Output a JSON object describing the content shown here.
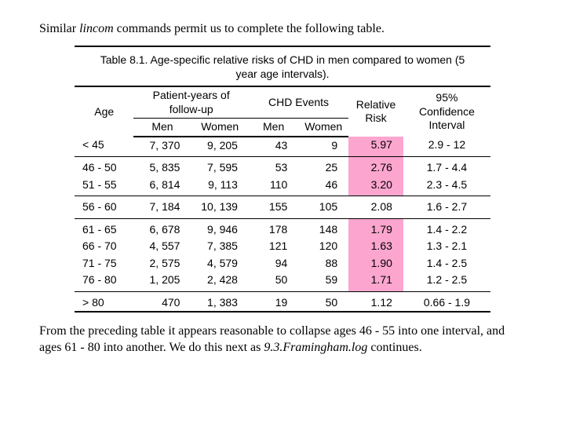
{
  "intro": {
    "prefix": "Similar ",
    "italic": "lincom",
    "suffix": " commands permit us to complete the following table."
  },
  "caption": "Table 8.1.  Age-specific relative risks of CHD in men compared to women (5 year age intervals).",
  "headers": {
    "age": "Age",
    "py": "Patient-years of follow-up",
    "ev": "CHD Events",
    "rr": "Relative Risk",
    "ci": "95% Confidence Interval",
    "men": "Men",
    "women": "Women"
  },
  "rows": [
    {
      "age": "< 45",
      "pym": "7, 370",
      "pyw": "9, 205",
      "evm": "43",
      "evw": "9",
      "rr": "5.97",
      "ci": "2.9 - 12",
      "hl": true,
      "sep": true
    },
    {
      "age": "46 - 50",
      "pym": "5, 835",
      "pyw": "7, 595",
      "evm": "53",
      "evw": "25",
      "rr": "2.76",
      "ci": "1.7 - 4.4",
      "hl": true,
      "new": true
    },
    {
      "age": "51 - 55",
      "pym": "6, 814",
      "pyw": "9, 113",
      "evm": "110",
      "evw": "46",
      "rr": "3.20",
      "ci": "2.3 - 4.5",
      "hl": true,
      "sep": true
    },
    {
      "age": "56 - 60",
      "pym": "7, 184",
      "pyw": "10, 139",
      "evm": "155",
      "evw": "105",
      "rr": "2.08",
      "ci": "1.6 - 2.7",
      "hl": false,
      "sep": true,
      "new": true
    },
    {
      "age": "61 - 65",
      "pym": "6, 678",
      "pyw": "9, 946",
      "evm": "178",
      "evw": "148",
      "rr": "1.79",
      "ci": "1.4 - 2.2",
      "hl": true,
      "new": true
    },
    {
      "age": "66 - 70",
      "pym": "4, 557",
      "pyw": "7, 385",
      "evm": "121",
      "evw": "120",
      "rr": "1.63",
      "ci": "1.3 - 2.1",
      "hl": true
    },
    {
      "age": "71 - 75",
      "pym": "2, 575",
      "pyw": "4, 579",
      "evm": "94",
      "evw": "88",
      "rr": "1.90",
      "ci": "1.4 - 2.5",
      "hl": true
    },
    {
      "age": "76 - 80",
      "pym": "1, 205",
      "pyw": "2, 428",
      "evm": "50",
      "evw": "59",
      "rr": "1.71",
      "ci": "1.2 - 2.5",
      "hl": true,
      "sep": true
    },
    {
      "age": "> 80",
      "pym": "470",
      "pyw": "1, 383",
      "evm": "19",
      "evw": "50",
      "rr": "1.12",
      "ci": "0.66 - 1.9",
      "hl": false,
      "new": true,
      "last": true
    }
  ],
  "outro": {
    "line1": "From the preceding table it appears reasonable to collapse ages 46 - 55 into one interval, and ages 61 - 80 into another.  We do this next as ",
    "italic": "9.3.Framingham.log",
    "line2": " continues."
  },
  "style": {
    "highlight_color": "#fca6cf"
  }
}
